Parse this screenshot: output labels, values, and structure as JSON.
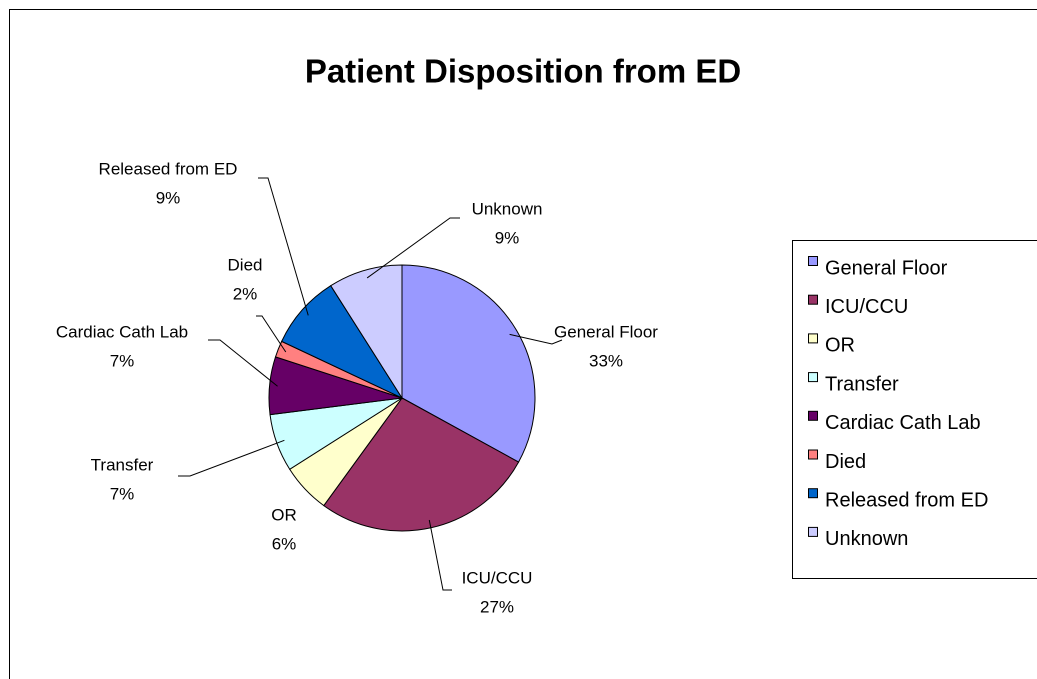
{
  "chart_data": {
    "type": "pie",
    "title": "Patient Disposition from ED",
    "categories": [
      "General Floor",
      "ICU/CCU",
      "OR",
      "Transfer",
      "Cardiac Cath Lab",
      "Died",
      "Released from ED",
      "Unknown"
    ],
    "values": [
      33,
      27,
      6,
      7,
      7,
      2,
      9,
      9
    ],
    "value_labels": [
      "33%",
      "27%",
      "6%",
      "7%",
      "7%",
      "2%",
      "9%",
      "9%"
    ],
    "colors": [
      "#9999ff",
      "#993366",
      "#ffffcc",
      "#ccffff",
      "#660066",
      "#ff8080",
      "#0066cc",
      "#ccccff"
    ],
    "legend": "right"
  }
}
